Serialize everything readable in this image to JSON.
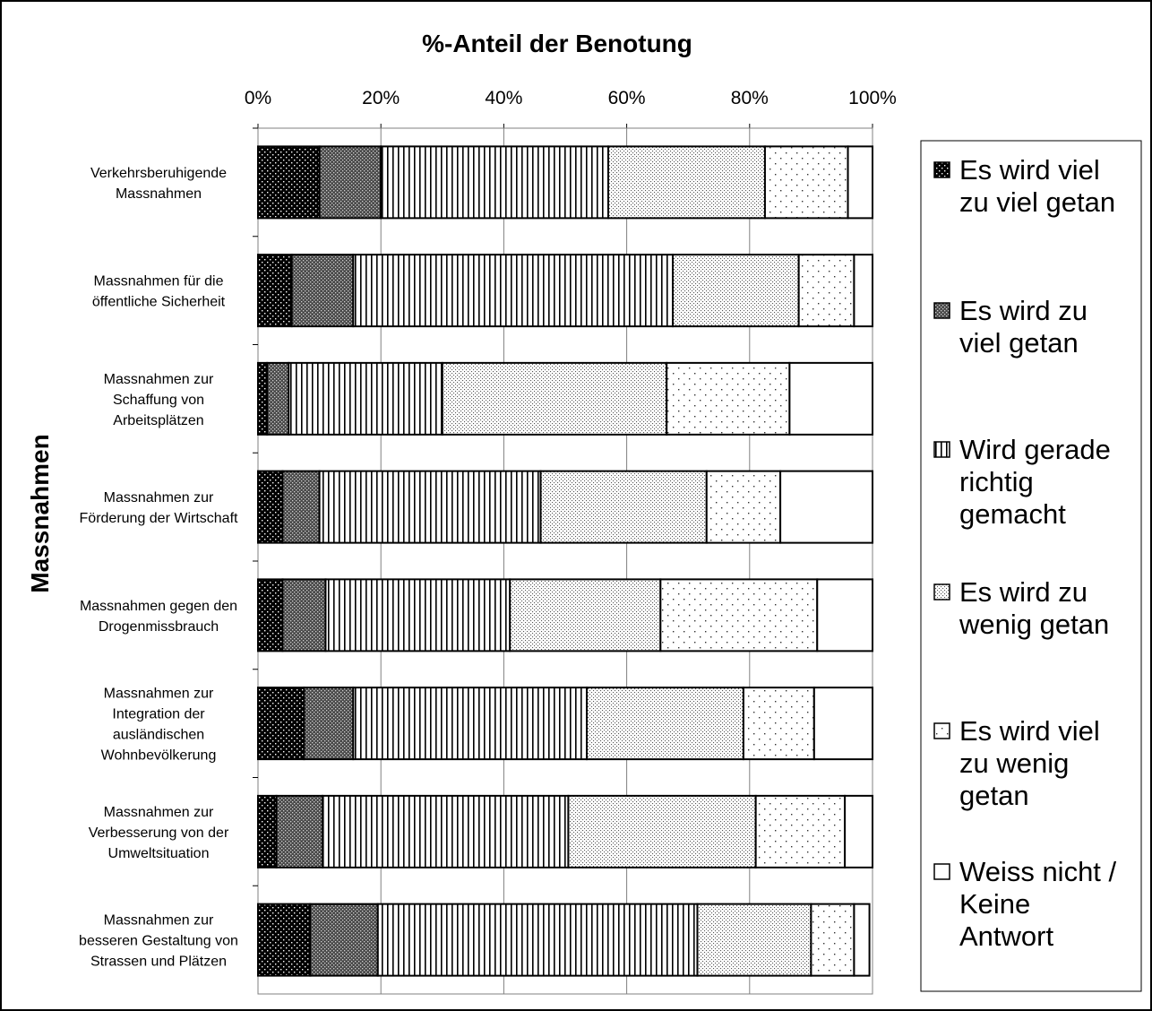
{
  "chart_data": {
    "type": "bar",
    "orientation": "horizontal",
    "stacked": "percent",
    "title": "%-Anteil der Benotung",
    "ylabel": "Massnahmen",
    "xlim": [
      0,
      100
    ],
    "x_ticks": [
      "0%",
      "20%",
      "40%",
      "60%",
      "80%",
      "100%"
    ],
    "grid": true,
    "legend_position": "right",
    "categories": [
      "Verkehrsberuhigende Massnahmen",
      "Massnahmen für die öffentliche Sicherheit",
      "Massnahmen zur Schaffung von Arbeitsplätzen",
      "Massnahmen zur Förderung der Wirtschaft",
      "Massnahmen gegen den Drogenmissbrauch",
      "Massnahmen zur Integration der ausländischen Wohnbevölkerung",
      "Massnahmen zur Verbesserung von der Umweltsituation",
      "Massnahmen zur besseren Gestaltung von Strassen und Plätzen"
    ],
    "category_lines": [
      [
        "Verkehrsberuhigende",
        "Massnahmen"
      ],
      [
        "Massnahmen für die",
        "öffentliche Sicherheit"
      ],
      [
        "Massnahmen zur",
        "Schaffung von",
        "Arbeitsplätzen"
      ],
      [
        "Massnahmen zur",
        "Förderung der Wirtschaft"
      ],
      [
        "Massnahmen gegen den",
        "Drogenmissbrauch"
      ],
      [
        "Massnahmen zur",
        "Integration der",
        "ausländischen",
        "Wohnbevölkerung"
      ],
      [
        "Massnahmen zur",
        "Verbesserung von der",
        "Umweltsituation"
      ],
      [
        "Massnahmen zur",
        "besseren Gestaltung von",
        "Strassen und Plätzen"
      ]
    ],
    "series": [
      {
        "name": "Es wird viel zu viel getan",
        "legend_lines": [
          "Es wird viel",
          "zu viel getan"
        ],
        "pattern": "dense-dots-dark",
        "values": [
          10,
          5.5,
          1.5,
          4,
          4,
          7.5,
          3,
          8.5
        ]
      },
      {
        "name": "Es wird zu viel getan",
        "legend_lines": [
          "Es wird zu",
          "viel getan"
        ],
        "pattern": "dense-dots-medium",
        "values": [
          10,
          10,
          3.5,
          6,
          7,
          8,
          7.5,
          11
        ]
      },
      {
        "name": "Wird gerade richtig gemacht",
        "legend_lines": [
          "Wird gerade",
          "richtig",
          "gemacht"
        ],
        "pattern": "vertical-lines",
        "values": [
          37,
          52,
          25,
          36,
          30,
          38,
          40,
          52
        ]
      },
      {
        "name": "Es wird zu wenig getan",
        "legend_lines": [
          "Es wird zu",
          "wenig getan"
        ],
        "pattern": "fine-dots",
        "values": [
          25.5,
          20.5,
          36.5,
          27,
          24.5,
          25.5,
          30.5,
          18.5
        ]
      },
      {
        "name": "Es wird viel zu wenig getan",
        "legend_lines": [
          "Es wird viel",
          "zu wenig",
          "getan"
        ],
        "pattern": "sparse-dots",
        "values": [
          13.5,
          9,
          20,
          12,
          25.5,
          11.5,
          14.5,
          7
        ]
      },
      {
        "name": "Weiss nicht / Keine Antwort",
        "legend_lines": [
          "Weiss nicht /",
          "Keine",
          "Antwort"
        ],
        "pattern": "white",
        "values": [
          4,
          3,
          13.5,
          15,
          9,
          9.5,
          4.5,
          2.5
        ]
      }
    ]
  }
}
